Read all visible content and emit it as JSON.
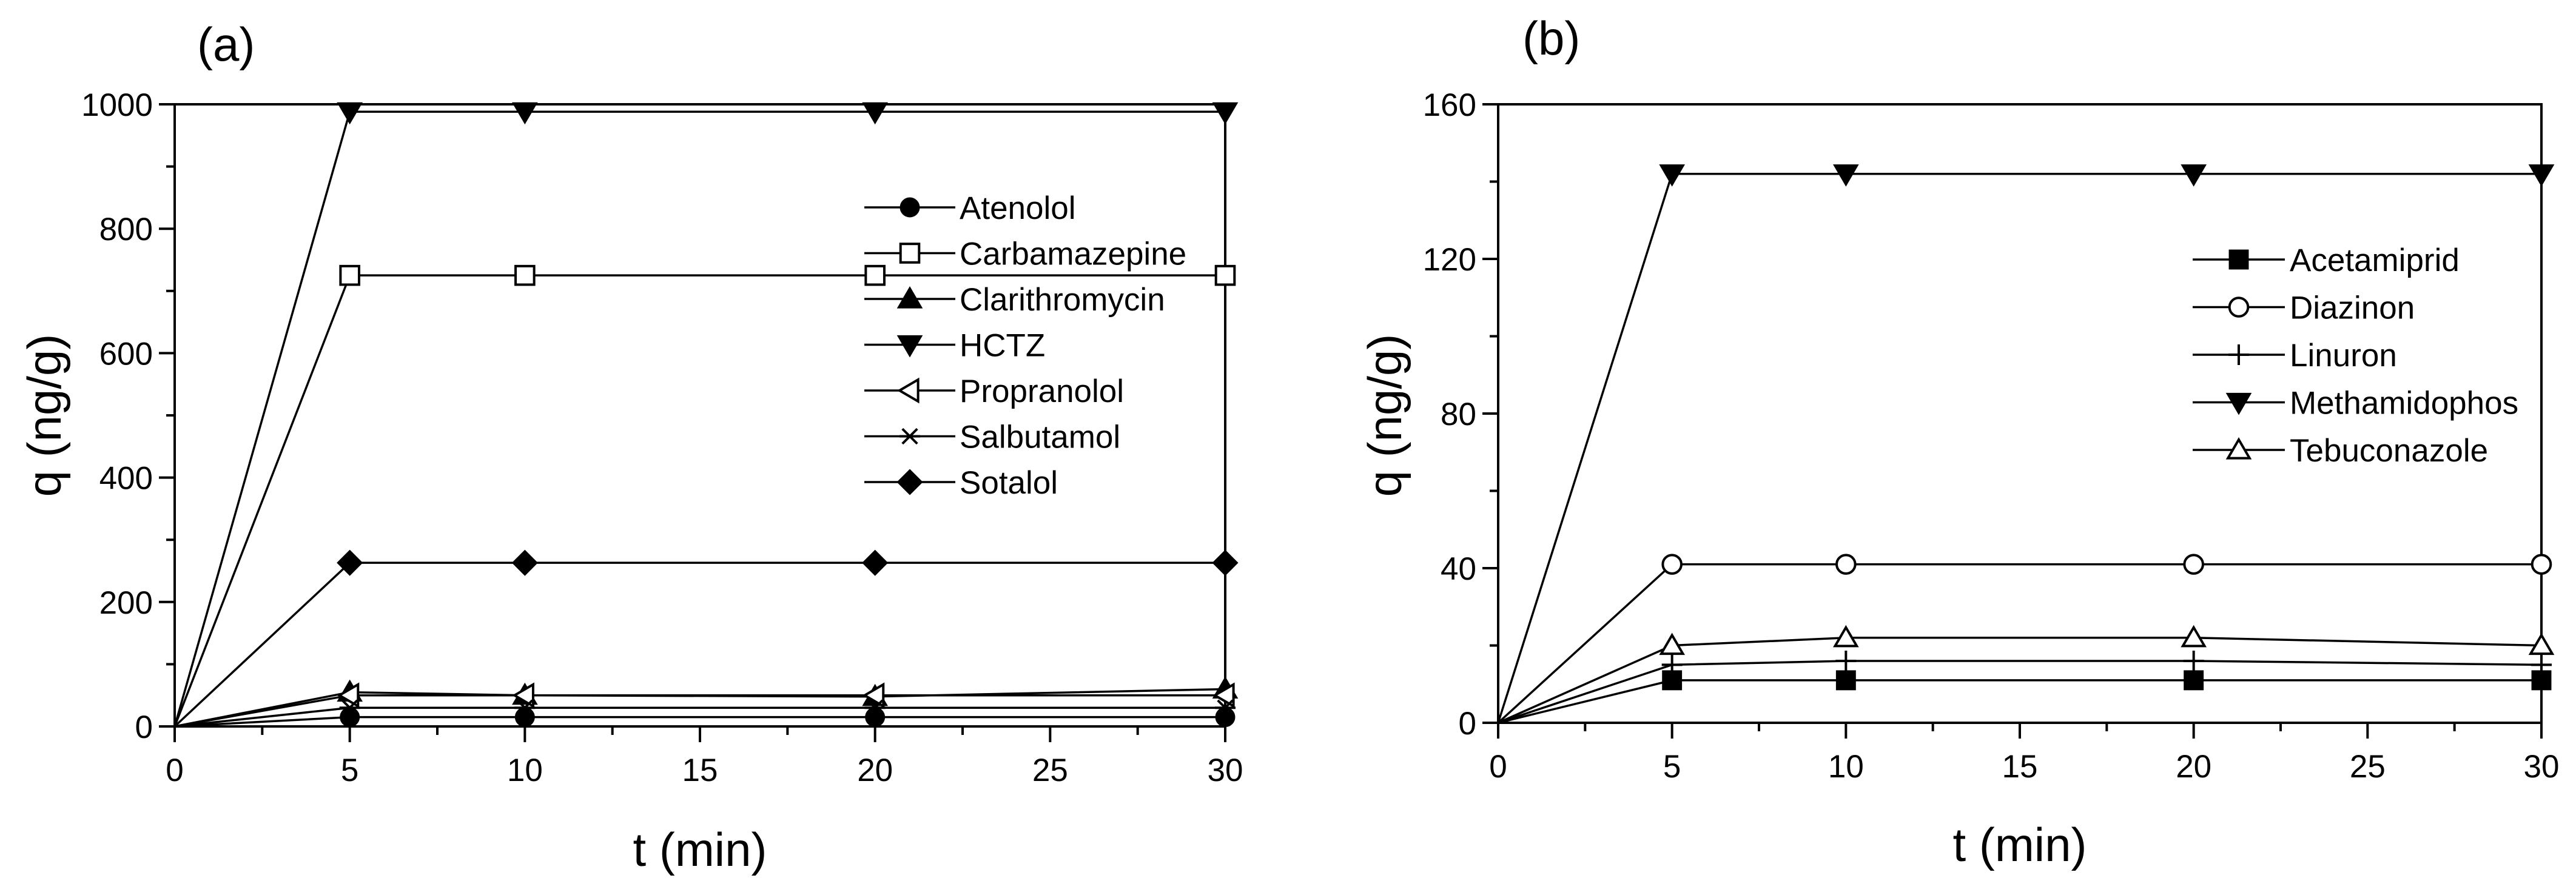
{
  "chart_data": [
    {
      "type": "line",
      "panel_label": "(a)",
      "xlabel": "t (min)",
      "ylabel": "q (ng/g)",
      "xlim": [
        0,
        30
      ],
      "ylim": [
        0,
        1000
      ],
      "xticks": [
        0,
        5,
        10,
        15,
        20,
        25,
        30
      ],
      "yticks": [
        0,
        200,
        400,
        600,
        800,
        1000
      ],
      "legend_position": "right",
      "x": [
        0,
        5,
        10,
        20,
        30
      ],
      "series": [
        {
          "name": "Atenolol",
          "marker": "circle-filled",
          "values": [
            0,
            15,
            15,
            15,
            15
          ]
        },
        {
          "name": "Carbamazepine",
          "marker": "square-open",
          "values": [
            0,
            725,
            725,
            725,
            725
          ]
        },
        {
          "name": "Clarithromycin",
          "marker": "triangle-up-filled",
          "values": [
            0,
            55,
            50,
            48,
            60
          ]
        },
        {
          "name": "HCTZ",
          "marker": "triangle-down-filled",
          "values": [
            0,
            988,
            988,
            988,
            988
          ]
        },
        {
          "name": "Propranolol",
          "marker": "triangle-left-open",
          "values": [
            0,
            50,
            50,
            50,
            50
          ]
        },
        {
          "name": "Salbutamol",
          "marker": "asterisk",
          "values": [
            0,
            30,
            30,
            30,
            30
          ]
        },
        {
          "name": "Sotalol",
          "marker": "diamond-filled",
          "values": [
            0,
            263,
            263,
            263,
            263
          ]
        }
      ]
    },
    {
      "type": "line",
      "panel_label": "(b)",
      "xlabel": "t (min)",
      "ylabel": "q (ng/g)",
      "xlim": [
        0,
        30
      ],
      "ylim": [
        0,
        160
      ],
      "xticks": [
        0,
        5,
        10,
        15,
        20,
        25,
        30
      ],
      "yticks": [
        0,
        40,
        80,
        120,
        160
      ],
      "legend_position": "right",
      "x": [
        0,
        5,
        10,
        20,
        30
      ],
      "series": [
        {
          "name": "Acetamiprid",
          "marker": "square-filled",
          "values": [
            0,
            11,
            11,
            11,
            11
          ]
        },
        {
          "name": "Diazinon",
          "marker": "circle-open",
          "values": [
            0,
            41,
            41,
            41,
            41
          ]
        },
        {
          "name": "Linuron",
          "marker": "plus",
          "values": [
            0,
            15,
            16,
            16,
            15
          ]
        },
        {
          "name": "Methamidophos",
          "marker": "triangle-down-filled",
          "values": [
            0,
            142,
            142,
            142,
            142
          ]
        },
        {
          "name": "Tebuconazole",
          "marker": "triangle-up-open",
          "values": [
            0,
            20,
            22,
            22,
            20
          ]
        }
      ]
    }
  ]
}
